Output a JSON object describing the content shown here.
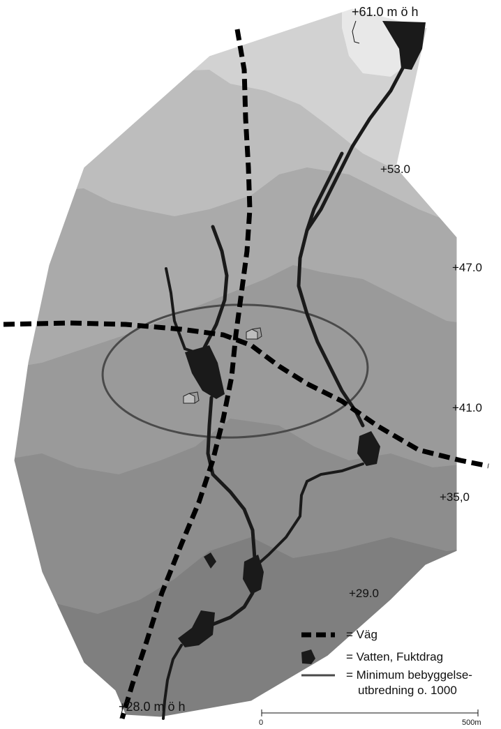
{
  "elevations": {
    "top": "+61.0 m ö h",
    "e53": "+53.0",
    "e47": "+47.0",
    "e41": "+41.0",
    "e35": "+35,0",
    "e29": "+29.0",
    "bottom": "+28.0 m ö h"
  },
  "legend": {
    "road": "= Väg",
    "water": "= Vatten, Fuktdrag",
    "settlement_line1": "= Minimum bebyggelse-",
    "settlement_line2": "utbredning o. 1000"
  },
  "scale": {
    "start": "0",
    "end": "500m"
  },
  "colors": {
    "zone_lightest": "#e8e8e8",
    "zone_1": "#d2d2d2",
    "zone_2": "#bdbdbd",
    "zone_3": "#aaaaaa",
    "zone_4": "#9a9a9a",
    "zone_5": "#8d8d8d",
    "zone_6": "#7f7f7f",
    "water": "#1a1a1a",
    "outline": "#444444"
  }
}
